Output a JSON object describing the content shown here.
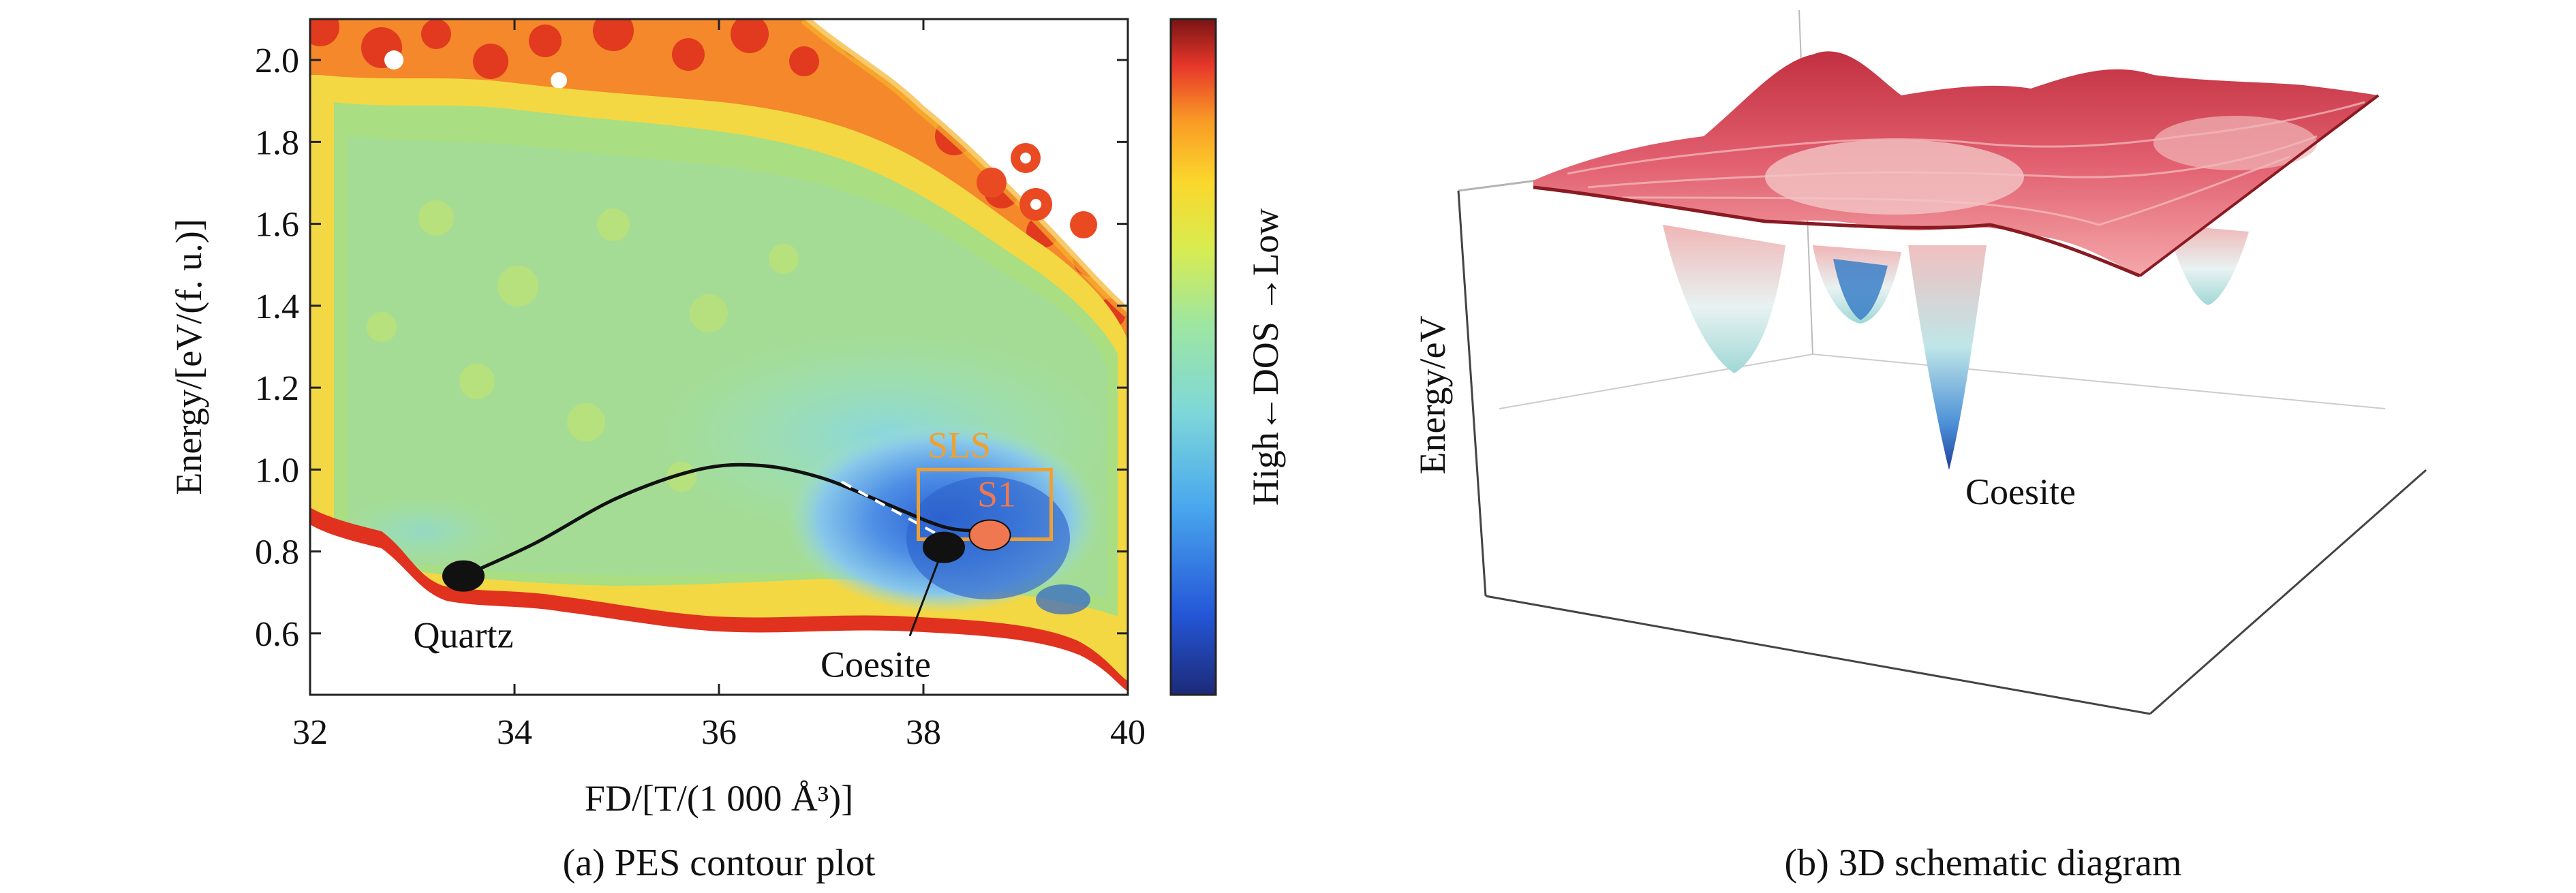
{
  "chart_data": [
    {
      "type": "heatmap",
      "panel": "a",
      "caption": "(a) PES contour plot",
      "xlabel": "FD/[T/(1 000 Å³)]",
      "ylabel": "Energy/[eV/(f. u.)]",
      "xlim": [
        32,
        40
      ],
      "ylim": [
        0.45,
        2.1
      ],
      "xticks": [
        "32",
        "34",
        "36",
        "38",
        "40"
      ],
      "yticks": [
        "0.6",
        "0.8",
        "1.0",
        "1.2",
        "1.4",
        "1.6",
        "1.8",
        "2.0"
      ],
      "colorbar_label": "High←DOS →Low",
      "points": [
        {
          "label": "Quartz",
          "x": 33.5,
          "y": 0.74,
          "color": "#111111"
        },
        {
          "label": "Coesite",
          "x": 38.2,
          "y": 0.81,
          "color": "#111111"
        },
        {
          "label": "S1",
          "x": 38.65,
          "y": 0.84,
          "color": "#f07850"
        }
      ],
      "box": {
        "label": "SLS",
        "x0": 37.95,
        "x1": 39.25,
        "y0": 0.83,
        "y1": 1.0,
        "color": "#f0a030"
      },
      "path": [
        [
          33.5,
          0.74
        ],
        [
          34.2,
          0.82
        ],
        [
          35.0,
          0.93
        ],
        [
          35.8,
          1.0
        ],
        [
          36.4,
          1.01
        ],
        [
          37.0,
          0.98
        ],
        [
          37.6,
          0.92
        ],
        [
          38.2,
          0.86
        ],
        [
          38.6,
          0.85
        ]
      ]
    },
    {
      "type": "surface",
      "panel": "b",
      "caption": "(b) 3D schematic diagram",
      "zlabel": "Energy/eV",
      "annotation": "Coesite"
    }
  ]
}
